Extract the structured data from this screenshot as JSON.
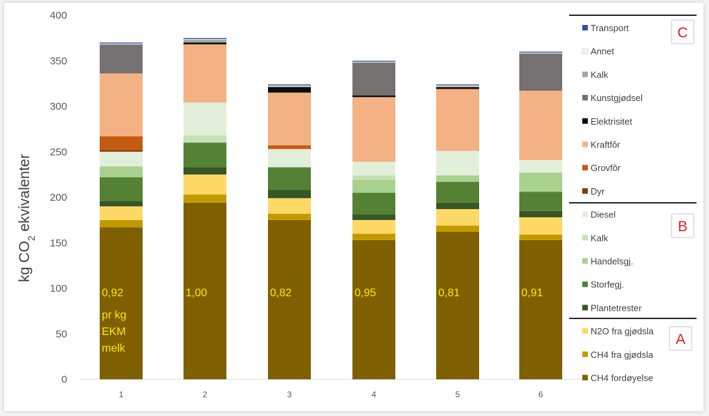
{
  "chart_data": {
    "type": "bar",
    "stacked": true,
    "ylabel_prefix": "kg CO",
    "ylabel_sub": "2",
    "ylabel_suffix": " ekvivalenter",
    "ylim": [
      0,
      400
    ],
    "yticks": [
      0,
      50,
      100,
      150,
      200,
      250,
      300,
      350,
      400
    ],
    "grid": false,
    "legend_position": "right",
    "categories": [
      "1",
      "2",
      "3",
      "4",
      "5",
      "6"
    ],
    "series": [
      {
        "name": "CH4 fordøyelse",
        "color": "#7f6000",
        "values": [
          167,
          194,
          175,
          153,
          162,
          153
        ]
      },
      {
        "name": "CH4 fra gjødsla",
        "color": "#c29a00",
        "values": [
          8,
          9,
          7,
          7,
          7,
          6
        ]
      },
      {
        "name": "N2O fra gjødsla",
        "color": "#ffd966",
        "values": [
          15,
          22,
          17,
          15,
          18,
          19
        ]
      },
      {
        "name": "Plantetrester",
        "color": "#375623",
        "values": [
          6,
          8,
          9,
          6,
          7,
          7
        ]
      },
      {
        "name": "Storfegj.",
        "color": "#548235",
        "values": [
          26,
          27,
          25,
          24,
          23,
          21
        ]
      },
      {
        "name": "Handelsgj.",
        "color": "#a9d18e",
        "values": [
          12,
          0,
          0,
          14,
          7,
          21
        ]
      },
      {
        "name": "Kalk",
        "color": "#c5e0b4",
        "values": [
          0,
          8,
          0,
          5,
          0,
          0
        ]
      },
      {
        "name": "Diesel",
        "color": "#e2efda",
        "values": [
          16,
          36,
          20,
          15,
          27,
          14
        ]
      },
      {
        "name": "Dyr",
        "color": "#843c0c",
        "values": [
          2,
          0,
          0,
          0,
          0,
          0
        ]
      },
      {
        "name": "Grovfôr",
        "color": "#c55a11",
        "values": [
          15,
          0,
          4,
          0,
          0,
          0
        ]
      },
      {
        "name": "Kraftfôr",
        "color": "#f4b183",
        "values": [
          69,
          64,
          58,
          71,
          68,
          76
        ]
      },
      {
        "name": "Elektrisitet",
        "color": "#0d0d0d",
        "values": [
          0,
          2,
          6,
          2,
          2,
          0
        ]
      },
      {
        "name": "Kunstgjødsel",
        "color": "#767171",
        "values": [
          32,
          0,
          0,
          36,
          0,
          41
        ]
      },
      {
        "name": "Kalk",
        "color": "#a6a6a6",
        "values": [
          0,
          3,
          1,
          0,
          1,
          0
        ]
      },
      {
        "name": "Annet",
        "color": "#f2f2f2",
        "values": [
          1,
          1,
          1,
          1,
          1,
          1
        ]
      },
      {
        "name": "Transport",
        "color": "#2f5597",
        "values": [
          1,
          1,
          1,
          1,
          1,
          1
        ]
      }
    ],
    "annotations": [
      "0,92",
      "1,00",
      "0,82",
      "0,95",
      "0,81",
      "0,91"
    ],
    "annotation_note": [
      "pr kg",
      "EKM",
      "melk"
    ],
    "groups": [
      "A",
      "B",
      "C"
    ],
    "legend_order": [
      "Transport",
      "Annet",
      "Kalk",
      "Kunstgjødsel",
      "Elektrisitet",
      "Kraftfôr",
      "Grovfôr",
      "Dyr",
      "Diesel",
      "Kalk",
      "Handelsgj.",
      "Storfegj.",
      "Plantetrester",
      "N2O fra gjødsla",
      "CH4 fra gjødsla",
      "CH4 fordøyelse"
    ],
    "legend_colors": [
      "#2f5597",
      "#f2f2f2",
      "#a6a6a6",
      "#767171",
      "#0d0d0d",
      "#f4b183",
      "#c55a11",
      "#843c0c",
      "#e2efda",
      "#c5e0b4",
      "#a9d18e",
      "#548235",
      "#375623",
      "#ffd966",
      "#c29a00",
      "#7f6000"
    ]
  }
}
